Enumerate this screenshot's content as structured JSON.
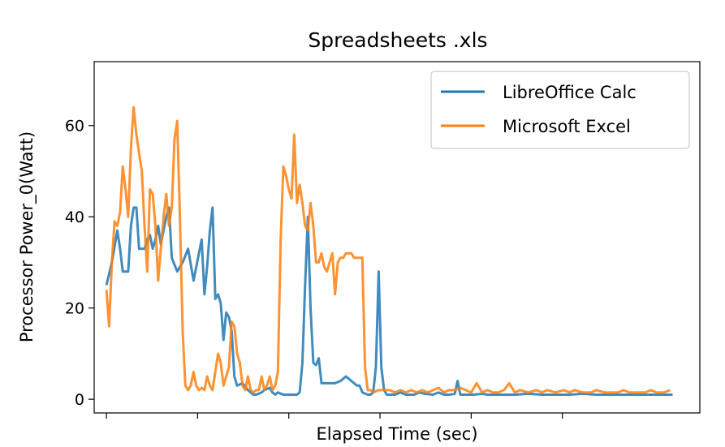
{
  "chart_data": {
    "type": "line",
    "title": "Spreadsheets .xls",
    "xlabel": "Elapsed Time (sec)",
    "ylabel": "Processor Power_0(Watt)",
    "ylim": [
      -3,
      74
    ],
    "xlim": [
      -4.5,
      218
    ],
    "yticks": [
      0,
      20,
      40,
      60
    ],
    "xticks_labeled": false,
    "grid": false,
    "legend_position": "top-right",
    "series": [
      {
        "name": "LibreOffice Calc",
        "color": "#1f77b4",
        "points": [
          [
            0,
            25
          ],
          [
            2,
            30
          ],
          [
            4,
            37
          ],
          [
            5,
            33
          ],
          [
            6,
            28
          ],
          [
            8,
            28
          ],
          [
            9,
            38
          ],
          [
            10,
            42
          ],
          [
            11,
            42
          ],
          [
            12,
            33
          ],
          [
            14,
            33
          ],
          [
            15,
            35
          ],
          [
            16,
            36
          ],
          [
            17,
            33
          ],
          [
            18,
            35
          ],
          [
            19,
            38
          ],
          [
            20,
            34
          ],
          [
            22,
            40
          ],
          [
            23,
            42
          ],
          [
            24,
            31
          ],
          [
            26,
            28
          ],
          [
            28,
            30
          ],
          [
            30,
            33
          ],
          [
            32,
            26
          ],
          [
            33,
            29
          ],
          [
            35,
            35
          ],
          [
            36,
            23
          ],
          [
            37,
            29
          ],
          [
            38,
            37
          ],
          [
            39,
            42
          ],
          [
            40,
            22
          ],
          [
            41,
            23
          ],
          [
            42,
            21
          ],
          [
            43,
            13
          ],
          [
            44,
            19
          ],
          [
            45,
            18
          ],
          [
            46,
            15
          ],
          [
            47,
            5
          ],
          [
            48,
            3
          ],
          [
            50,
            3.5
          ],
          [
            52,
            2
          ],
          [
            53,
            1.5
          ],
          [
            54,
            1
          ],
          [
            55,
            1
          ],
          [
            57,
            1.5
          ],
          [
            58,
            2
          ],
          [
            60,
            2.5
          ],
          [
            61,
            1.5
          ],
          [
            62,
            1
          ],
          [
            63,
            1.5
          ],
          [
            65,
            1
          ],
          [
            67,
            1
          ],
          [
            68,
            1
          ],
          [
            69,
            1
          ],
          [
            70,
            1
          ],
          [
            71,
            1.5
          ],
          [
            72,
            8
          ],
          [
            73,
            25
          ],
          [
            74,
            40
          ],
          [
            75,
            20
          ],
          [
            76,
            8
          ],
          [
            77,
            7.5
          ],
          [
            78,
            9
          ],
          [
            79,
            3.5
          ],
          [
            80,
            3.5
          ],
          [
            82,
            3.5
          ],
          [
            84,
            3.5
          ],
          [
            86,
            4
          ],
          [
            87,
            4.5
          ],
          [
            88,
            5
          ],
          [
            89,
            4.5
          ],
          [
            90,
            4
          ],
          [
            91,
            3.5
          ],
          [
            92,
            3
          ],
          [
            93,
            3
          ],
          [
            94,
            1.5
          ],
          [
            96,
            1
          ],
          [
            97,
            1
          ],
          [
            98,
            1.5
          ],
          [
            99,
            7
          ],
          [
            100,
            28
          ],
          [
            101,
            7
          ],
          [
            102,
            2
          ],
          [
            103,
            1
          ],
          [
            106,
            1
          ],
          [
            108,
            1.5
          ],
          [
            110,
            1
          ],
          [
            113,
            1
          ],
          [
            115,
            1.5
          ],
          [
            117,
            1.2
          ],
          [
            120,
            1
          ],
          [
            122,
            1.5
          ],
          [
            124,
            1
          ],
          [
            126,
            1
          ],
          [
            128,
            1.2
          ],
          [
            129,
            4
          ],
          [
            130,
            1
          ],
          [
            133,
            1
          ],
          [
            135,
            1
          ],
          [
            138,
            1.2
          ],
          [
            140,
            1
          ],
          [
            145,
            1
          ],
          [
            150,
            1
          ],
          [
            155,
            1.2
          ],
          [
            160,
            1
          ],
          [
            165,
            1
          ],
          [
            170,
            1
          ],
          [
            175,
            1.2
          ],
          [
            180,
            1
          ],
          [
            185,
            1
          ],
          [
            190,
            1
          ],
          [
            195,
            1
          ],
          [
            200,
            1
          ],
          [
            205,
            1
          ],
          [
            208,
            1
          ]
        ]
      },
      {
        "name": "Microsoft Excel",
        "color": "#ff7f0e",
        "points": [
          [
            0,
            24
          ],
          [
            1,
            16
          ],
          [
            2,
            30
          ],
          [
            3,
            39
          ],
          [
            4,
            38
          ],
          [
            5,
            41
          ],
          [
            6,
            51
          ],
          [
            7,
            46
          ],
          [
            8,
            40
          ],
          [
            9,
            55
          ],
          [
            10,
            64
          ],
          [
            11,
            58
          ],
          [
            12,
            54
          ],
          [
            13,
            50
          ],
          [
            14,
            38
          ],
          [
            15,
            28
          ],
          [
            16,
            46
          ],
          [
            17,
            45
          ],
          [
            18,
            38
          ],
          [
            19,
            26
          ],
          [
            20,
            33
          ],
          [
            21,
            40
          ],
          [
            22,
            45
          ],
          [
            23,
            38
          ],
          [
            24,
            42
          ],
          [
            25,
            57
          ],
          [
            26,
            61
          ],
          [
            27,
            40
          ],
          [
            28,
            15
          ],
          [
            29,
            3
          ],
          [
            30,
            2
          ],
          [
            31,
            3
          ],
          [
            32,
            6
          ],
          [
            33,
            3
          ],
          [
            34,
            2
          ],
          [
            35,
            2.5
          ],
          [
            36,
            2
          ],
          [
            37,
            5
          ],
          [
            38,
            3
          ],
          [
            39,
            2
          ],
          [
            40,
            6
          ],
          [
            41,
            10
          ],
          [
            42,
            8
          ],
          [
            43,
            3
          ],
          [
            44,
            5
          ],
          [
            45,
            7
          ],
          [
            46,
            17
          ],
          [
            47,
            16
          ],
          [
            48,
            10
          ],
          [
            49,
            8
          ],
          [
            50,
            3
          ],
          [
            51,
            2
          ],
          [
            52,
            5
          ],
          [
            53,
            2
          ],
          [
            54,
            1.5
          ],
          [
            55,
            2
          ],
          [
            56,
            2
          ],
          [
            57,
            5
          ],
          [
            58,
            2
          ],
          [
            59,
            3
          ],
          [
            60,
            5
          ],
          [
            61,
            2
          ],
          [
            62,
            3
          ],
          [
            63,
            6
          ],
          [
            64,
            35
          ],
          [
            65,
            51
          ],
          [
            66,
            49
          ],
          [
            67,
            46
          ],
          [
            68,
            44
          ],
          [
            69,
            58
          ],
          [
            70,
            43
          ],
          [
            71,
            47
          ],
          [
            72,
            43
          ],
          [
            73,
            38
          ],
          [
            74,
            37
          ],
          [
            75,
            43
          ],
          [
            76,
            38
          ],
          [
            77,
            30
          ],
          [
            78,
            30
          ],
          [
            79,
            32
          ],
          [
            80,
            29
          ],
          [
            81,
            28
          ],
          [
            82,
            30
          ],
          [
            83,
            32
          ],
          [
            84,
            23
          ],
          [
            85,
            30
          ],
          [
            86,
            31
          ],
          [
            87,
            31
          ],
          [
            88,
            32
          ],
          [
            89,
            32
          ],
          [
            90,
            32
          ],
          [
            91,
            31
          ],
          [
            92,
            31
          ],
          [
            93,
            31
          ],
          [
            94,
            31
          ],
          [
            95,
            7
          ],
          [
            96,
            2
          ],
          [
            97,
            2
          ],
          [
            98,
            1.5
          ],
          [
            100,
            2
          ],
          [
            102,
            2
          ],
          [
            104,
            2
          ],
          [
            106,
            1.5
          ],
          [
            108,
            2
          ],
          [
            110,
            1.5
          ],
          [
            112,
            2
          ],
          [
            114,
            1.5
          ],
          [
            116,
            2
          ],
          [
            118,
            1.5
          ],
          [
            120,
            2
          ],
          [
            122,
            2.5
          ],
          [
            124,
            1.5
          ],
          [
            126,
            2
          ],
          [
            128,
            2
          ],
          [
            130,
            2.5
          ],
          [
            132,
            2
          ],
          [
            134,
            1.5
          ],
          [
            136,
            3.5
          ],
          [
            138,
            1.5
          ],
          [
            140,
            2
          ],
          [
            142,
            1.5
          ],
          [
            144,
            1.5
          ],
          [
            146,
            2
          ],
          [
            148,
            3.5
          ],
          [
            150,
            1.5
          ],
          [
            152,
            2
          ],
          [
            155,
            1.5
          ],
          [
            158,
            2
          ],
          [
            160,
            1.5
          ],
          [
            162,
            2
          ],
          [
            165,
            1.5
          ],
          [
            168,
            2
          ],
          [
            170,
            1.5
          ],
          [
            172,
            2
          ],
          [
            175,
            1.5
          ],
          [
            178,
            1.5
          ],
          [
            180,
            2
          ],
          [
            183,
            1.5
          ],
          [
            185,
            1.5
          ],
          [
            188,
            1.5
          ],
          [
            190,
            2
          ],
          [
            192,
            1.5
          ],
          [
            195,
            1.5
          ],
          [
            198,
            1.5
          ],
          [
            200,
            2
          ],
          [
            202,
            1.5
          ],
          [
            205,
            1.5
          ],
          [
            207,
            2
          ]
        ]
      }
    ]
  }
}
